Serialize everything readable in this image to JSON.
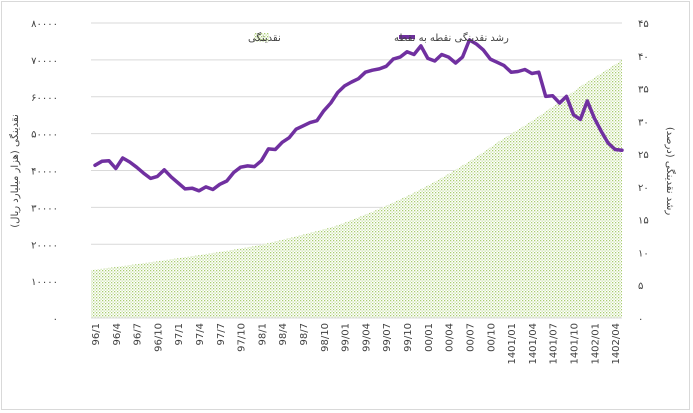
{
  "chart_data": {
    "type": "area+line",
    "title": "",
    "y_left_label": "نقدینگی (هزار میلیارد ریال)",
    "y_right_label": "رشد نقدینگی (درصد)",
    "y_left_ticks": [
      "۰",
      "۱۰۰۰۰",
      "۲۰۰۰۰",
      "۳۰۰۰۰",
      "۴۰۰۰۰",
      "۵۰۰۰۰",
      "۶۰۰۰۰",
      "۷۰۰۰۰",
      "۸۰۰۰۰"
    ],
    "y_right_ticks": [
      "۰",
      "۵",
      "۱۰",
      "۱۵",
      "۲۰",
      "۲۵",
      "۳۰",
      "۳۵",
      "۴۰",
      "۴۵"
    ],
    "y_left_range": [
      0,
      80000
    ],
    "y_right_range": [
      0,
      45
    ],
    "x_tick_labels": [
      "96/1",
      "96/4",
      "96/7",
      "96/10",
      "97/1",
      "97/4",
      "97/7",
      "97/10",
      "98/1",
      "98/4",
      "98/7",
      "98/10",
      "99/01",
      "99/04",
      "99/07",
      "99/10",
      "00/01",
      "00/04",
      "00/07",
      "00/10",
      "1401/01",
      "1401/04",
      "1401/07",
      "1401/10",
      "1402/01",
      "1402/04"
    ],
    "legend": [
      {
        "name": "نقدینگی",
        "kind": "area"
      },
      {
        "name": "رشد نقدینگی نقطه به نقطه",
        "kind": "line"
      }
    ],
    "colors": {
      "area": "#c6dfa2",
      "line": "#7030a0"
    },
    "series": [
      {
        "name": "نقدینگی",
        "axis": "left",
        "anchor_month_index": [
          0,
          12,
          24,
          36,
          48,
          60,
          72,
          78
        ],
        "anchor_values": [
          13000,
          16000,
          19500,
          25000,
          34500,
          48000,
          63000,
          70000
        ]
      },
      {
        "name": "رشد نقدینگی نقطه به نقطه",
        "axis": "right",
        "values": [
          23.3,
          23.9,
          24.0,
          22.8,
          24.4,
          23.8,
          23.0,
          22.1,
          21.3,
          21.6,
          22.6,
          21.5,
          20.6,
          19.7,
          19.8,
          19.4,
          20.0,
          19.6,
          20.4,
          20.9,
          22.2,
          23.0,
          23.2,
          23.1,
          24.0,
          25.8,
          25.7,
          26.8,
          27.5,
          28.8,
          29.3,
          29.8,
          30.1,
          31.6,
          32.8,
          34.4,
          35.4,
          36.0,
          36.5,
          37.5,
          37.8,
          38.0,
          38.4,
          39.5,
          39.8,
          40.6,
          40.2,
          41.5,
          39.6,
          39.2,
          40.2,
          39.8,
          38.9,
          39.8,
          42.4,
          41.8,
          40.9,
          39.5,
          39.0,
          38.5,
          37.5,
          37.6,
          37.9,
          37.3,
          37.5,
          33.8,
          33.9,
          32.8,
          33.8,
          31.0,
          30.3,
          33.1,
          30.5,
          28.5,
          26.7,
          25.7,
          25.6
        ]
      }
    ],
    "grid": "horizontal"
  }
}
